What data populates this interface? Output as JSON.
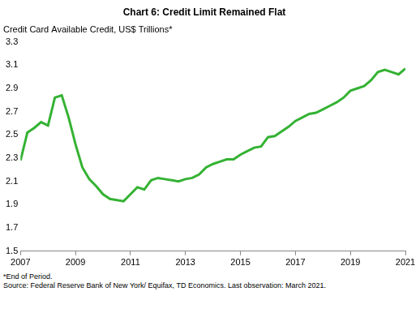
{
  "chart_data": {
    "type": "line",
    "title": "Chart 6: Credit Limit Remained Flat",
    "y_label": "Credit Card Available Credit, US$ Trillions*",
    "notes": [
      "*End of Period.",
      "Source: Federal Reserve Bank of New York/ Equifax, TD Economics. Last observation: March 2021."
    ],
    "x": [
      2007,
      2007.25,
      2007.5,
      2007.75,
      2008,
      2008.25,
      2008.5,
      2008.75,
      2009,
      2009.25,
      2009.5,
      2009.75,
      2010,
      2010.25,
      2010.5,
      2010.75,
      2011,
      2011.25,
      2011.5,
      2011.75,
      2012,
      2012.25,
      2012.5,
      2012.75,
      2013,
      2013.25,
      2013.5,
      2013.75,
      2014,
      2014.25,
      2014.5,
      2014.75,
      2015,
      2015.25,
      2015.5,
      2015.75,
      2016,
      2016.25,
      2016.5,
      2016.75,
      2017,
      2017.25,
      2017.5,
      2017.75,
      2018,
      2018.25,
      2018.5,
      2018.75,
      2019,
      2019.25,
      2019.5,
      2019.75,
      2020,
      2020.25,
      2020.5,
      2020.75,
      2021
    ],
    "values": [
      2.28,
      2.52,
      2.56,
      2.61,
      2.58,
      2.82,
      2.84,
      2.65,
      2.42,
      2.22,
      2.12,
      2.06,
      1.99,
      1.95,
      1.94,
      1.93,
      1.99,
      2.05,
      2.03,
      2.11,
      2.13,
      2.12,
      2.11,
      2.1,
      2.12,
      2.13,
      2.16,
      2.22,
      2.25,
      2.27,
      2.29,
      2.29,
      2.33,
      2.36,
      2.39,
      2.4,
      2.48,
      2.49,
      2.53,
      2.57,
      2.62,
      2.65,
      2.68,
      2.69,
      2.72,
      2.75,
      2.78,
      2.82,
      2.88,
      2.9,
      2.92,
      2.97,
      3.04,
      3.06,
      3.04,
      3.02,
      3.07
    ],
    "color": "#34b233",
    "xlim": [
      2007,
      2021
    ],
    "xticks": [
      2007,
      2009,
      2011,
      2013,
      2015,
      2017,
      2019,
      2021
    ],
    "ylim": [
      1.5,
      3.3
    ],
    "yticks": [
      1.5,
      1.7,
      1.9,
      2.1,
      2.3,
      2.5,
      2.7,
      2.9,
      3.1,
      3.3
    ],
    "grid": false
  }
}
